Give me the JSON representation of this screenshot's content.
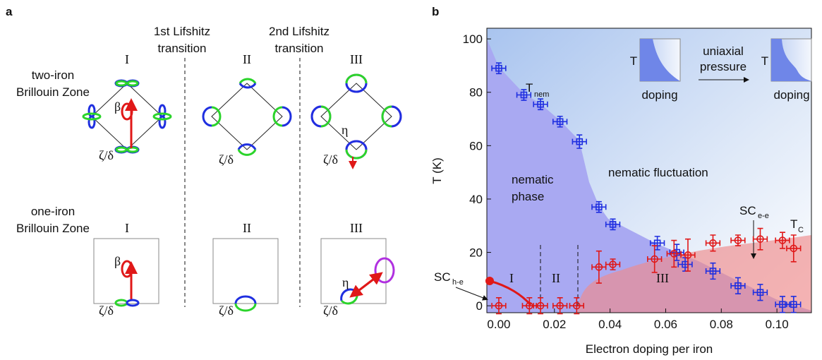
{
  "panel_a": {
    "label": "a",
    "transition_1": [
      "1st Lifshitz",
      "transition"
    ],
    "transition_2": [
      "2nd Lifshitz",
      "transition"
    ],
    "rows": [
      {
        "title": [
          "two-iron",
          "Brillouin Zone"
        ],
        "stages": [
          "I",
          "II",
          "III"
        ]
      },
      {
        "title": [
          "one-iron",
          "Brillouin Zone"
        ],
        "stages": [
          "I",
          "II",
          "III"
        ]
      }
    ],
    "symbols": {
      "beta": "β",
      "zeta_delta": "ζ/δ",
      "eta": "η"
    }
  },
  "chart_data": {
    "type": "scatter",
    "label": "b",
    "x_label": "Electron doping per iron",
    "y_label": "T (K)",
    "xlim": [
      -0.0043,
      0.1124
    ],
    "ylim": [
      -2.6,
      104
    ],
    "xticks": [
      {
        "value": 0,
        "label": "0.00"
      },
      0.02,
      0.04,
      0.06,
      0.08,
      {
        "value": 0.1,
        "label": "0.10"
      }
    ],
    "yticks": [
      0,
      20,
      40,
      60,
      80,
      100
    ],
    "series": [
      {
        "color": "#1f2fe0",
        "marker": "square",
        "x": [
          0.0,
          0.009,
          0.015,
          0.022,
          0.029,
          0.036,
          0.041,
          0.057,
          0.064,
          0.067,
          0.077,
          0.086,
          0.094,
          0.102,
          0.106
        ],
        "values": [
          89,
          79,
          75.5,
          69,
          61.5,
          37,
          30.5,
          23.5,
          20,
          15.5,
          13,
          7.5,
          5,
          0.5,
          0.5
        ],
        "xerr": [
          0.0025,
          0.0025,
          0.0025,
          0.0025,
          0.0025,
          0.0025,
          0.0025,
          0.0025,
          0.0025,
          0.0025,
          0.0025,
          0.0025,
          0.0025,
          0.0025,
          0.0025
        ],
        "yerr": [
          2,
          2,
          2,
          2,
          2.5,
          2,
          2,
          2.5,
          3,
          2.5,
          3,
          3,
          3,
          3,
          3
        ]
      },
      {
        "color": "#e01818",
        "marker": "circle",
        "x": [
          0.0,
          0.011,
          0.015,
          0.022,
          0.028,
          0.036,
          0.041,
          0.056,
          0.063,
          0.068,
          0.077,
          0.086,
          0.094,
          0.102,
          0.106
        ],
        "values": [
          0,
          0,
          0,
          0,
          0,
          14.5,
          15.5,
          17.5,
          19.5,
          19,
          23.5,
          24.5,
          25,
          24.5,
          21.5
        ],
        "xerr": [
          0.0025,
          0.0025,
          0.0025,
          0.0025,
          0.0025,
          0.0025,
          0.0025,
          0.0025,
          0.0025,
          0.0025,
          0.0025,
          0.0025,
          0.0025,
          0.0025,
          0.0025
        ],
        "yerr": [
          3,
          3,
          3,
          3,
          3,
          6,
          2,
          5,
          5,
          6,
          3,
          2,
          4,
          3,
          5
        ]
      }
    ],
    "annotations": {
      "t_nem": "T",
      "t_nem_sub": "nem",
      "nematic_phase": [
        "nematic",
        "phase"
      ],
      "nematic_fluctuation": "nematic fluctuation",
      "sc_ee": "SC",
      "sc_ee_sub": "e-e",
      "tc": "T",
      "tc_sub": "C",
      "sc_he": "SC",
      "sc_he_sub": "h-e",
      "regions": [
        "I",
        "II",
        "III"
      ]
    },
    "inset": {
      "axis_t": "T",
      "axis_doping": "doping",
      "arrow_label": [
        "uniaxial",
        "pressure"
      ]
    }
  }
}
